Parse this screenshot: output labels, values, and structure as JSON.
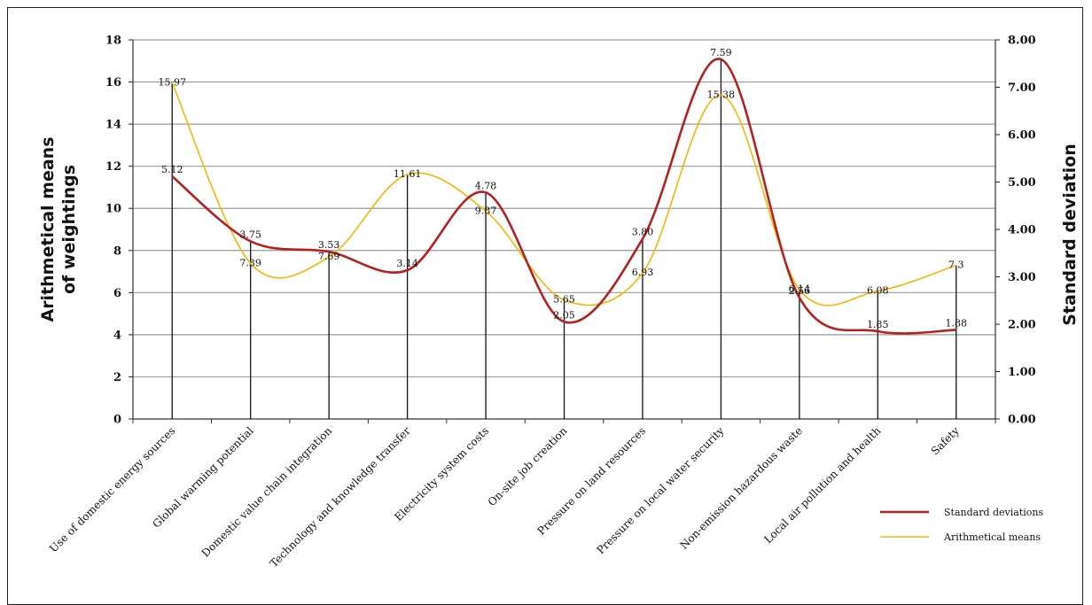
{
  "chart_data": {
    "type": "line",
    "categories": [
      "Use of domestic energy sources",
      "Global warming potential",
      "Domestic value chain integration",
      "Technology and knowledge transfer",
      "Electricity system costs",
      "On-site job creation",
      "Pressure on land resources",
      "Pressure on local water security",
      "Non-emission hazardous waste",
      "Local air pollution and health",
      "Safety"
    ],
    "series": [
      {
        "name": "Standard deviations",
        "axis": "right",
        "color": "#b22222",
        "values": [
          5.12,
          3.75,
          3.53,
          3.14,
          4.78,
          2.05,
          3.8,
          7.59,
          2.56,
          1.85,
          1.88
        ],
        "labels": [
          "5.12",
          "3.75",
          "3.53",
          "3.14",
          "4.78",
          "2.05",
          "3.80",
          "7.59",
          "2.56",
          "1.85",
          "1.88"
        ]
      },
      {
        "name": "Arithmetical means",
        "axis": "left",
        "color": "#f2b705",
        "values": [
          15.97,
          7.39,
          7.69,
          11.61,
          9.87,
          5.65,
          6.93,
          15.38,
          6.14,
          6.08,
          7.3
        ],
        "labels": [
          "15.97",
          "7.39",
          "7.69",
          "11.61",
          "9.87",
          "5.65",
          "6.93",
          "15.38",
          "6.14",
          "6.08",
          "7.3"
        ]
      }
    ],
    "ylabel_left": "Arithmetical means of weightings",
    "ylabel_right": "Standard deviation",
    "ylim_left": [
      0,
      18
    ],
    "ylim_right": [
      0,
      8
    ],
    "yticks_left": [
      "0",
      "2",
      "4",
      "6",
      "8",
      "10",
      "12",
      "14",
      "16",
      "18"
    ],
    "yticks_right": [
      "0.00",
      "1.00",
      "2.00",
      "3.00",
      "4.00",
      "5.00",
      "6.00",
      "7.00",
      "8.00"
    ],
    "grid": true,
    "legend": "bottom-right"
  }
}
